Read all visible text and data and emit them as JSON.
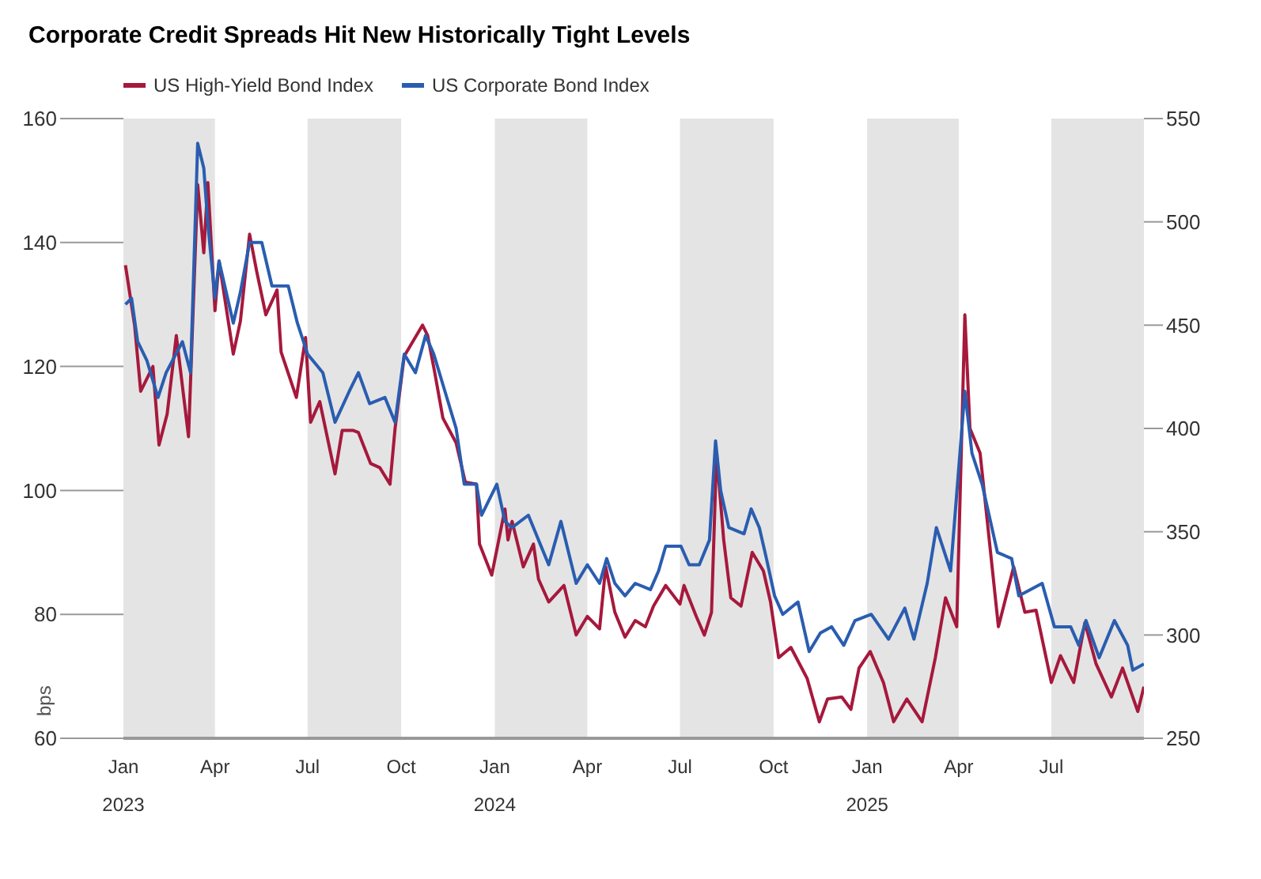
{
  "chart_data": {
    "type": "line",
    "title": "Corporate Credit Spreads Hit New Historically Tight Levels",
    "ylabel": "bps",
    "legend": "top left",
    "marker": "none",
    "line_style": "solid",
    "xlim": [
      "2023-01-01",
      "2025-09-30"
    ],
    "xticks": [
      {
        "value": "2023-01-01",
        "label": "Jan 2023"
      },
      {
        "value": "2023-04-01",
        "label": "Apr"
      },
      {
        "value": "2023-07-01",
        "label": "Jul"
      },
      {
        "value": "2023-10-01",
        "label": "Oct"
      },
      {
        "value": "2024-01-01",
        "label": "Jan 2024"
      },
      {
        "value": "2024-04-01",
        "label": "Apr"
      },
      {
        "value": "2024-07-01",
        "label": "Jul"
      },
      {
        "value": "2024-10-01",
        "label": "Oct"
      },
      {
        "value": "2025-01-01",
        "label": "Jan 2025"
      },
      {
        "value": "2025-04-01",
        "label": "Apr"
      },
      {
        "value": "2025-07-01",
        "label": "Jul"
      }
    ],
    "ylim": [
      60,
      160
    ],
    "yticks": [
      60,
      80,
      100,
      120,
      140,
      160
    ],
    "y2lim": [
      250,
      550
    ],
    "y2ticks": [
      250,
      300,
      350,
      400,
      450,
      500,
      550
    ],
    "bands": [
      {
        "axis": "x",
        "from": "2023-01-01",
        "to": "2023-04-01",
        "color": "#e4e4e4"
      },
      {
        "axis": "x",
        "from": "2023-07-01",
        "to": "2023-10-01",
        "color": "#e4e4e4"
      },
      {
        "axis": "x",
        "from": "2024-01-01",
        "to": "2024-04-01",
        "color": "#e4e4e4"
      },
      {
        "axis": "x",
        "from": "2024-07-01",
        "to": "2024-10-01",
        "color": "#e4e4e4"
      },
      {
        "axis": "x",
        "from": "2025-01-01",
        "to": "2025-04-01",
        "color": "#e4e4e4"
      },
      {
        "axis": "x",
        "from": "2025-07-01",
        "to": "2025-09-30",
        "color": "#e4e4e4"
      }
    ],
    "series": [
      {
        "name": "US High-Yield Bond Index",
        "color": "#a6193c",
        "axis": "y2",
        "x": [
          "2023-01-03",
          "2023-01-12",
          "2023-01-18",
          "2023-01-30",
          "2023-02-05",
          "2023-02-13",
          "2023-02-22",
          "2023-03-06",
          "2023-03-15",
          "2023-03-21",
          "2023-03-25",
          "2023-04-01",
          "2023-04-05",
          "2023-04-19",
          "2023-04-26",
          "2023-05-05",
          "2023-05-12",
          "2023-05-21",
          "2023-06-01",
          "2023-06-05",
          "2023-06-20",
          "2023-06-29",
          "2023-07-04",
          "2023-07-13",
          "2023-07-28",
          "2023-08-04",
          "2023-08-15",
          "2023-08-20",
          "2023-09-01",
          "2023-09-10",
          "2023-09-20",
          "2023-09-25",
          "2023-10-04",
          "2023-10-22",
          "2023-10-27",
          "2023-11-03",
          "2023-11-11",
          "2023-11-24",
          "2023-12-03",
          "2023-12-14",
          "2023-12-17",
          "2023-12-29",
          "2024-01-11",
          "2024-01-14",
          "2024-01-18",
          "2024-01-29",
          "2024-02-08",
          "2024-02-13",
          "2024-02-23",
          "2024-03-09",
          "2024-03-21",
          "2024-04-01",
          "2024-04-13",
          "2024-04-19",
          "2024-04-28",
          "2024-05-08",
          "2024-05-18",
          "2024-05-28",
          "2024-06-05",
          "2024-06-17",
          "2024-07-01",
          "2024-07-05",
          "2024-07-17",
          "2024-07-25",
          "2024-08-01",
          "2024-08-06",
          "2024-08-13",
          "2024-08-20",
          "2024-08-30",
          "2024-09-10",
          "2024-09-21",
          "2024-09-28",
          "2024-10-06",
          "2024-10-18",
          "2024-11-03",
          "2024-11-15",
          "2024-11-23",
          "2024-12-07",
          "2024-12-16",
          "2024-12-24",
          "2025-01-04",
          "2025-01-17",
          "2025-01-27",
          "2025-02-09",
          "2025-02-24",
          "2025-03-09",
          "2025-03-19",
          "2025-03-30",
          "2025-04-07",
          "2025-04-12",
          "2025-04-22",
          "2025-05-10",
          "2025-05-25",
          "2025-06-05",
          "2025-06-16",
          "2025-07-01",
          "2025-07-10",
          "2025-07-23",
          "2025-08-03",
          "2025-08-14",
          "2025-08-29",
          "2025-09-09",
          "2025-09-24",
          "2025-09-30"
        ],
        "values": [
          479,
          450,
          418,
          430,
          392,
          407,
          445,
          396,
          518,
          485,
          519,
          457,
          481,
          436,
          452,
          494,
          476,
          455,
          467,
          437,
          415,
          444,
          403,
          413,
          378,
          399,
          399,
          398,
          383,
          381,
          373,
          400,
          435,
          450,
          445,
          427,
          405,
          393,
          374,
          373,
          344,
          329,
          361,
          346,
          355,
          333,
          344,
          327,
          316,
          324,
          300,
          309,
          303,
          333,
          311,
          299,
          307,
          304,
          314,
          324,
          315,
          324,
          309,
          300,
          311,
          388,
          346,
          318,
          314,
          340,
          331,
          316,
          289,
          294,
          279,
          258,
          269,
          270,
          264,
          284,
          292,
          277,
          258,
          269,
          258,
          289,
          318,
          304,
          455,
          400,
          388,
          304,
          333,
          311,
          312,
          277,
          290,
          277,
          306,
          286,
          270,
          284,
          263,
          275
        ]
      },
      {
        "name": "US Corporate Bond Index",
        "color": "#2a5db0",
        "x": [
          "2023-01-03",
          "2023-01-09",
          "2023-01-15",
          "2023-01-24",
          "2023-02-04",
          "2023-02-12",
          "2023-02-28",
          "2023-03-08",
          "2023-03-15",
          "2023-03-21",
          "2023-03-25",
          "2023-04-01",
          "2023-04-05",
          "2023-04-19",
          "2023-04-26",
          "2023-05-05",
          "2023-05-17",
          "2023-05-27",
          "2023-06-12",
          "2023-06-21",
          "2023-07-01",
          "2023-07-16",
          "2023-07-28",
          "2023-08-11",
          "2023-08-20",
          "2023-08-31",
          "2023-09-15",
          "2023-09-25",
          "2023-10-04",
          "2023-10-15",
          "2023-10-25",
          "2023-11-02",
          "2023-11-13",
          "2023-11-24",
          "2023-12-02",
          "2023-12-14",
          "2023-12-19",
          "2024-01-03",
          "2024-01-11",
          "2024-01-18",
          "2024-02-03",
          "2024-02-23",
          "2024-03-06",
          "2024-03-21",
          "2024-04-01",
          "2024-04-13",
          "2024-04-20",
          "2024-04-28",
          "2024-05-08",
          "2024-05-18",
          "2024-06-02",
          "2024-06-10",
          "2024-06-17",
          "2024-07-02",
          "2024-07-10",
          "2024-07-20",
          "2024-07-30",
          "2024-08-05",
          "2024-08-10",
          "2024-08-18",
          "2024-09-02",
          "2024-09-09",
          "2024-09-17",
          "2024-09-24",
          "2024-10-02",
          "2024-10-10",
          "2024-10-25",
          "2024-11-05",
          "2024-11-16",
          "2024-11-27",
          "2024-12-09",
          "2024-12-20",
          "2025-01-05",
          "2025-01-22",
          "2025-02-07",
          "2025-02-16",
          "2025-03-01",
          "2025-03-10",
          "2025-03-24",
          "2025-04-07",
          "2025-04-14",
          "2025-04-24",
          "2025-05-09",
          "2025-05-23",
          "2025-05-30",
          "2025-06-22",
          "2025-07-04",
          "2025-07-20",
          "2025-07-28",
          "2025-08-04",
          "2025-08-17",
          "2025-09-01",
          "2025-09-14",
          "2025-09-19",
          "2025-09-30"
        ],
        "values": [
          130,
          131,
          124,
          121,
          115,
          119,
          124,
          119,
          156,
          152,
          143,
          131,
          137,
          127,
          132,
          140,
          140,
          133,
          133,
          127,
          122,
          119,
          111,
          116,
          119,
          114,
          115,
          111,
          122,
          119,
          125,
          122,
          116,
          110,
          101,
          101,
          96,
          101,
          95,
          94,
          96,
          88,
          95,
          85,
          88,
          85,
          89,
          85,
          83,
          85,
          84,
          87,
          91,
          91,
          88,
          88,
          92,
          108,
          100,
          94,
          93,
          97,
          94,
          89,
          83,
          80,
          82,
          74,
          77,
          78,
          75,
          79,
          80,
          76,
          81,
          76,
          85,
          94,
          87,
          116,
          106,
          101,
          90,
          89,
          83,
          85,
          78,
          78,
          75,
          79,
          73,
          79,
          75,
          71,
          72
        ]
      }
    ]
  }
}
